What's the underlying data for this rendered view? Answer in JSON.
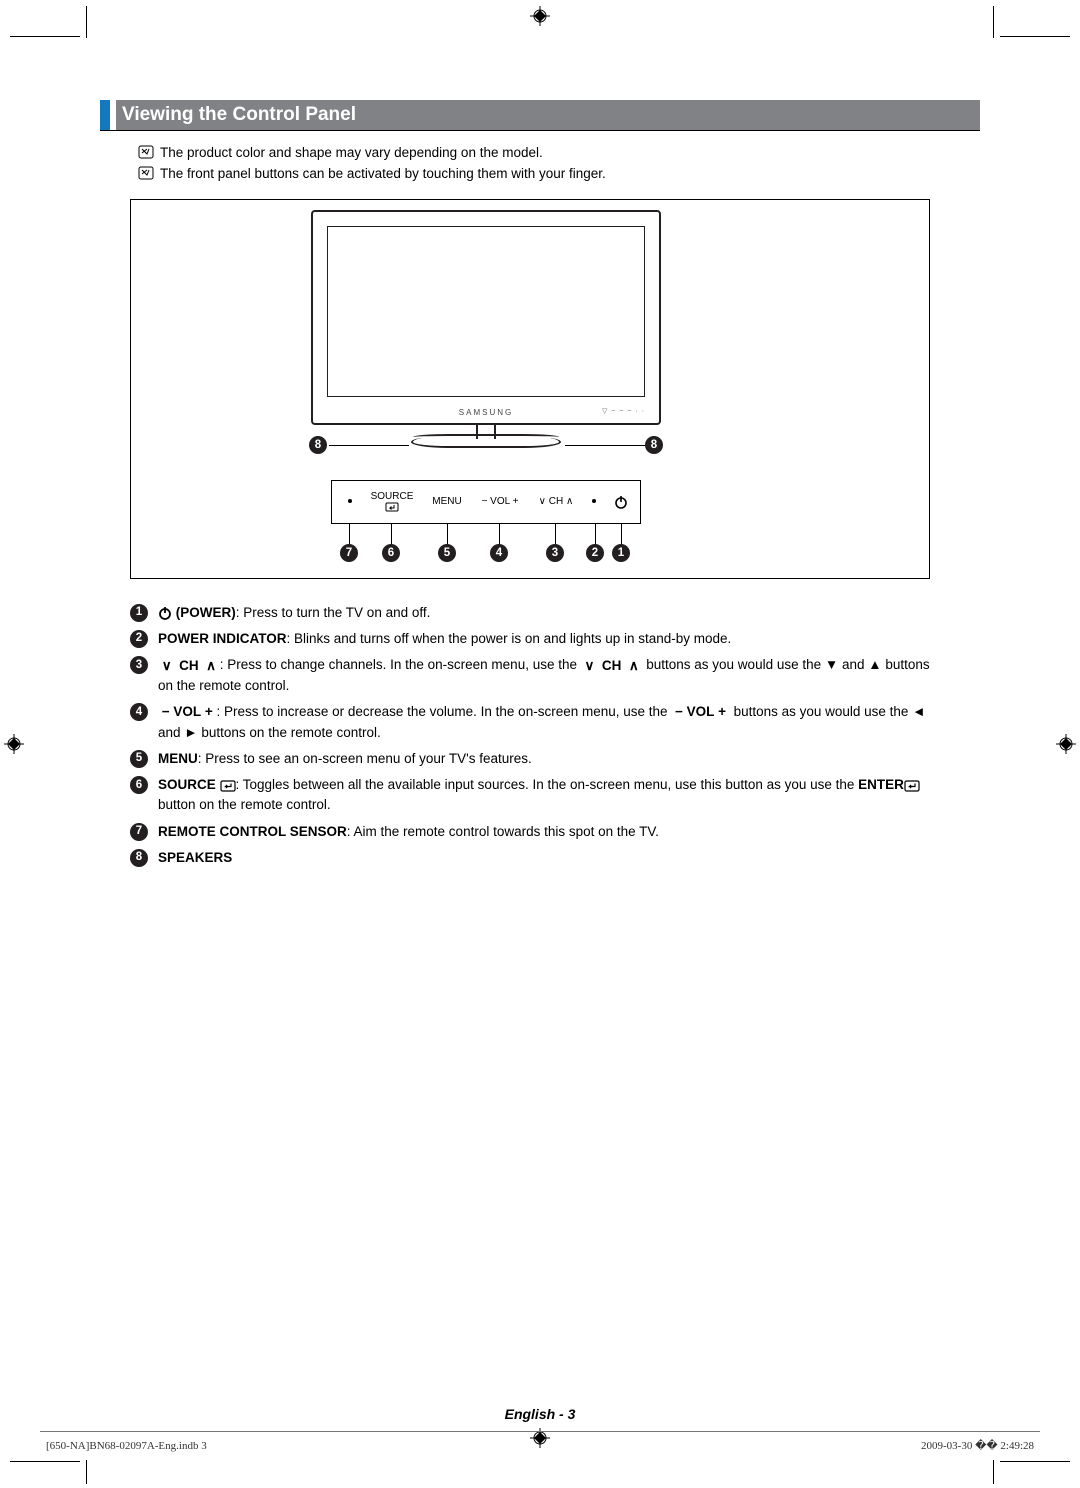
{
  "colors": {
    "accent": "#1478be",
    "title_bg": "#808285",
    "ink": "#231f20"
  },
  "section": {
    "title": "Viewing the Control Panel"
  },
  "notes": [
    "The product color and shape may vary depending on the model.",
    "The front panel buttons can be activated by touching them with your finger."
  ],
  "tv": {
    "brand": "SAMSUNG"
  },
  "panel": {
    "source_label": "SOURCE",
    "menu_label": "MENU",
    "vol_label_prefix": "−  VOL  +",
    "ch_label": "∨  CH  ∧"
  },
  "callouts": {
    "labels": [
      "1",
      "2",
      "3",
      "4",
      "5",
      "6",
      "7",
      "8"
    ]
  },
  "legend": [
    {
      "n": "1",
      "bold": " (POWER)",
      "text": ": Press to turn the TV on and off.",
      "prefix_icon": "power"
    },
    {
      "n": "2",
      "bold": "POWER INDICATOR",
      "text": ": Blinks and turns off when the power is on and lights up in stand-by mode."
    },
    {
      "n": "3",
      "bold": "",
      "prefix_icon": "ch",
      "text": ": Press to change channels. In the on-screen menu, use the ",
      "mid_icon": "ch",
      "text2": " buttons as you would use the ▼ and ▲ buttons on the remote control."
    },
    {
      "n": "4",
      "bold": "",
      "prefix_icon": "vol",
      "text": ": Press to increase or decrease the volume. In the on-screen menu, use the ",
      "mid_icon": "vol",
      "text2": " buttons as you would use the ◄ and ► buttons on the remote control."
    },
    {
      "n": "5",
      "bold": "MENU",
      "text": ": Press to see an on-screen menu of your TV's features."
    },
    {
      "n": "6",
      "bold": "SOURCE ",
      "post_icon": "enter",
      "text": ": Toggles between all the available input sources. In the on-screen menu, use this button as you use the ",
      "bold2": "ENTER",
      "post_icon2": "enter",
      "text2": " button on the remote control."
    },
    {
      "n": "7",
      "bold": "REMOTE CONTROL SENSOR",
      "text": ": Aim the remote control towards this spot on the TV."
    },
    {
      "n": "8",
      "bold": "SPEAKERS",
      "text": ""
    }
  ],
  "footer": {
    "lang": "English - 3",
    "left": "[650-NA]BN68-02097A-Eng.indb   3",
    "right": "2009-03-30   �� 2:49:28"
  }
}
